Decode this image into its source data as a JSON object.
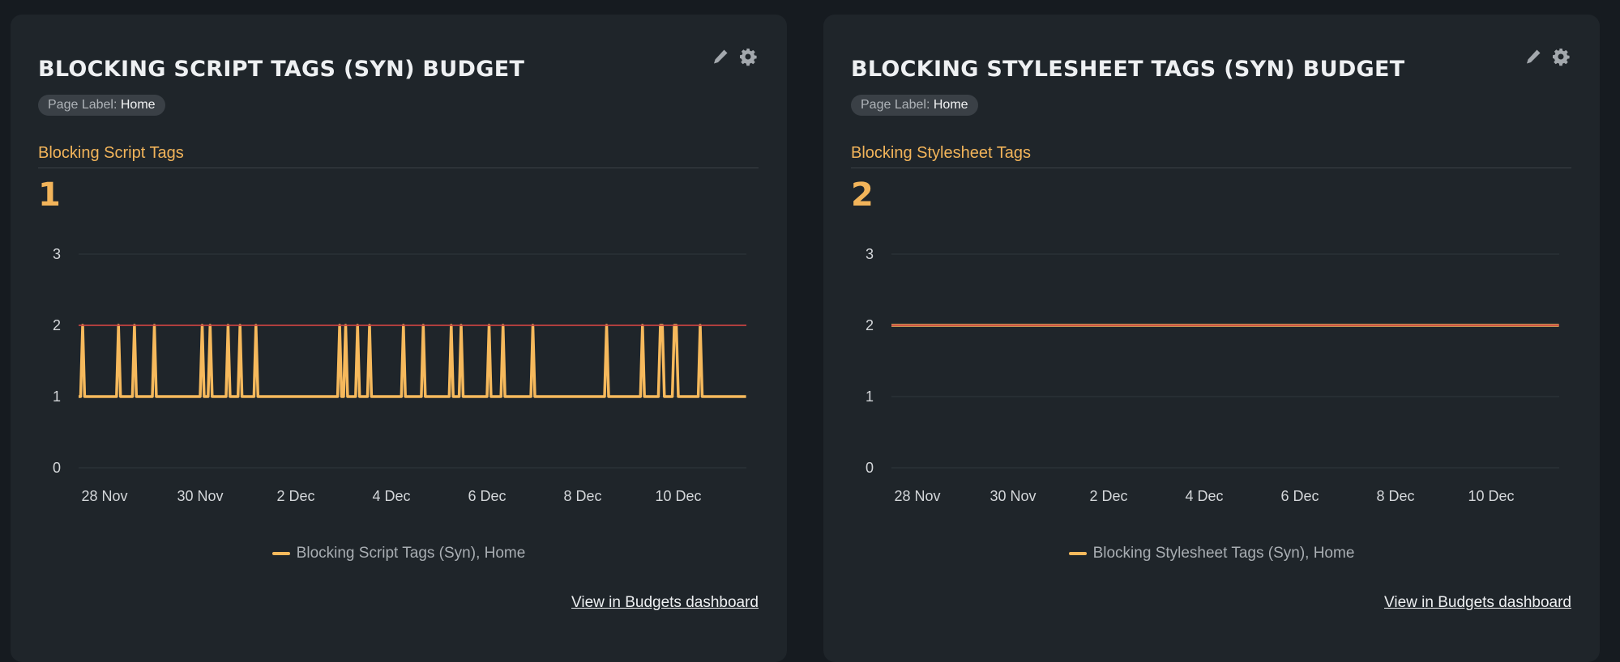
{
  "colors": {
    "series": "#f6b95c",
    "budget": "#c8423f",
    "grid": "#2f363c",
    "accent": "#f2b45a"
  },
  "cards": [
    {
      "title": "BLOCKING SCRIPT TAGS (SYN) BUDGET",
      "icons": [
        "pencil-icon",
        "gear-icon"
      ],
      "badge": {
        "key": "Page Label:",
        "value": "Home"
      },
      "metric_label": "Blocking Script Tags",
      "metric_value": "1",
      "legend": "Blocking Script Tags (Syn), Home",
      "link": "View in Budgets dashboard"
    },
    {
      "title": "BLOCKING STYLESHEET TAGS (SYN) BUDGET",
      "icons": [
        "pencil-icon",
        "gear-icon"
      ],
      "badge": {
        "key": "Page Label:",
        "value": "Home"
      },
      "metric_label": "Blocking Stylesheet Tags",
      "metric_value": "2",
      "legend": "Blocking Stylesheet Tags (Syn), Home",
      "link": "View in Budgets dashboard"
    }
  ],
  "chart_data": [
    {
      "type": "line",
      "title": "",
      "xlabel": "",
      "ylabel": "",
      "ylim": [
        0,
        3
      ],
      "yticks": [
        "0",
        "1",
        "2",
        "3"
      ],
      "xticks": [
        "28 Nov",
        "30 Nov",
        "2 Dec",
        "4 Dec",
        "6 Dec",
        "8 Dec",
        "10 Dec"
      ],
      "grid": true,
      "legend_position": "bottom",
      "budget": 2,
      "series": [
        {
          "name": "Blocking Script Tags (Syn), Home",
          "points": [
            [
              "27 Nov 11:00",
              1
            ],
            [
              "27 Nov 12:00",
              1
            ],
            [
              "27 Nov 13:00",
              2
            ],
            [
              "27 Nov 14:00",
              1
            ],
            [
              "28 Nov 06:00",
              1
            ],
            [
              "28 Nov 07:00",
              2
            ],
            [
              "28 Nov 08:00",
              1
            ],
            [
              "28 Nov 14:00",
              1
            ],
            [
              "28 Nov 15:00",
              2
            ],
            [
              "28 Nov 16:00",
              1
            ],
            [
              "29 Nov 00:00",
              1
            ],
            [
              "29 Nov 01:00",
              2
            ],
            [
              "29 Nov 02:00",
              1
            ],
            [
              "30 Nov 00:00",
              1
            ],
            [
              "30 Nov 01:00",
              2
            ],
            [
              "30 Nov 02:00",
              1
            ],
            [
              "30 Nov 04:00",
              1
            ],
            [
              "30 Nov 05:00",
              2
            ],
            [
              "30 Nov 06:00",
              1
            ],
            [
              "30 Nov 13:00",
              1
            ],
            [
              "30 Nov 14:00",
              2
            ],
            [
              "30 Nov 15:00",
              1
            ],
            [
              "30 Nov 19:00",
              1
            ],
            [
              "30 Nov 20:00",
              2
            ],
            [
              "30 Nov 21:00",
              1
            ],
            [
              "1 Dec 03:00",
              1
            ],
            [
              "1 Dec 04:00",
              2
            ],
            [
              "1 Dec 05:00",
              1
            ],
            [
              "2 Dec 21:00",
              1
            ],
            [
              "2 Dec 22:00",
              2
            ],
            [
              "2 Dec 23:00",
              1
            ],
            [
              "3 Dec 00:00",
              1
            ],
            [
              "3 Dec 01:00",
              2
            ],
            [
              "3 Dec 02:00",
              1
            ],
            [
              "3 Dec 06:00",
              1
            ],
            [
              "3 Dec 07:00",
              2
            ],
            [
              "3 Dec 08:00",
              1
            ],
            [
              "3 Dec 12:00",
              1
            ],
            [
              "3 Dec 13:00",
              2
            ],
            [
              "3 Dec 14:00",
              1
            ],
            [
              "4 Dec 05:00",
              1
            ],
            [
              "4 Dec 06:00",
              2
            ],
            [
              "4 Dec 07:00",
              1
            ],
            [
              "4 Dec 15:00",
              1
            ],
            [
              "4 Dec 16:00",
              2
            ],
            [
              "4 Dec 17:00",
              1
            ],
            [
              "5 Dec 05:00",
              1
            ],
            [
              "5 Dec 06:00",
              2
            ],
            [
              "5 Dec 07:00",
              1
            ],
            [
              "5 Dec 10:00",
              1
            ],
            [
              "5 Dec 11:00",
              2
            ],
            [
              "5 Dec 12:00",
              1
            ],
            [
              "6 Dec 00:00",
              1
            ],
            [
              "6 Dec 01:00",
              2
            ],
            [
              "6 Dec 02:00",
              1
            ],
            [
              "6 Dec 07:00",
              1
            ],
            [
              "6 Dec 08:00",
              2
            ],
            [
              "6 Dec 09:00",
              1
            ],
            [
              "6 Dec 22:00",
              1
            ],
            [
              "6 Dec 23:00",
              2
            ],
            [
              "7 Dec 00:00",
              1
            ],
            [
              "8 Dec 11:00",
              1
            ],
            [
              "8 Dec 12:00",
              2
            ],
            [
              "8 Dec 13:00",
              1
            ],
            [
              "9 Dec 05:00",
              1
            ],
            [
              "9 Dec 06:00",
              2
            ],
            [
              "9 Dec 07:00",
              1
            ],
            [
              "9 Dec 14:00",
              1
            ],
            [
              "9 Dec 15:00",
              2
            ],
            [
              "9 Dec 16:00",
              2
            ],
            [
              "9 Dec 17:00",
              1
            ],
            [
              "9 Dec 21:00",
              1
            ],
            [
              "9 Dec 22:00",
              2
            ],
            [
              "9 Dec 23:00",
              2
            ],
            [
              "10 Dec 00:00",
              1
            ],
            [
              "10 Dec 10:00",
              1
            ],
            [
              "10 Dec 11:00",
              2
            ],
            [
              "10 Dec 12:00",
              1
            ],
            [
              "11 Dec 10:00",
              1
            ]
          ]
        }
      ]
    },
    {
      "type": "line",
      "title": "",
      "xlabel": "",
      "ylabel": "",
      "ylim": [
        0,
        3
      ],
      "yticks": [
        "0",
        "1",
        "2",
        "3"
      ],
      "xticks": [
        "28 Nov",
        "30 Nov",
        "2 Dec",
        "4 Dec",
        "6 Dec",
        "8 Dec",
        "10 Dec"
      ],
      "grid": true,
      "legend_position": "bottom",
      "budget": 2,
      "series": [
        {
          "name": "Blocking Stylesheet Tags (Syn), Home",
          "points": [
            [
              "27 Nov 11:00",
              2
            ],
            [
              "11 Dec 10:00",
              2
            ]
          ]
        }
      ]
    }
  ]
}
